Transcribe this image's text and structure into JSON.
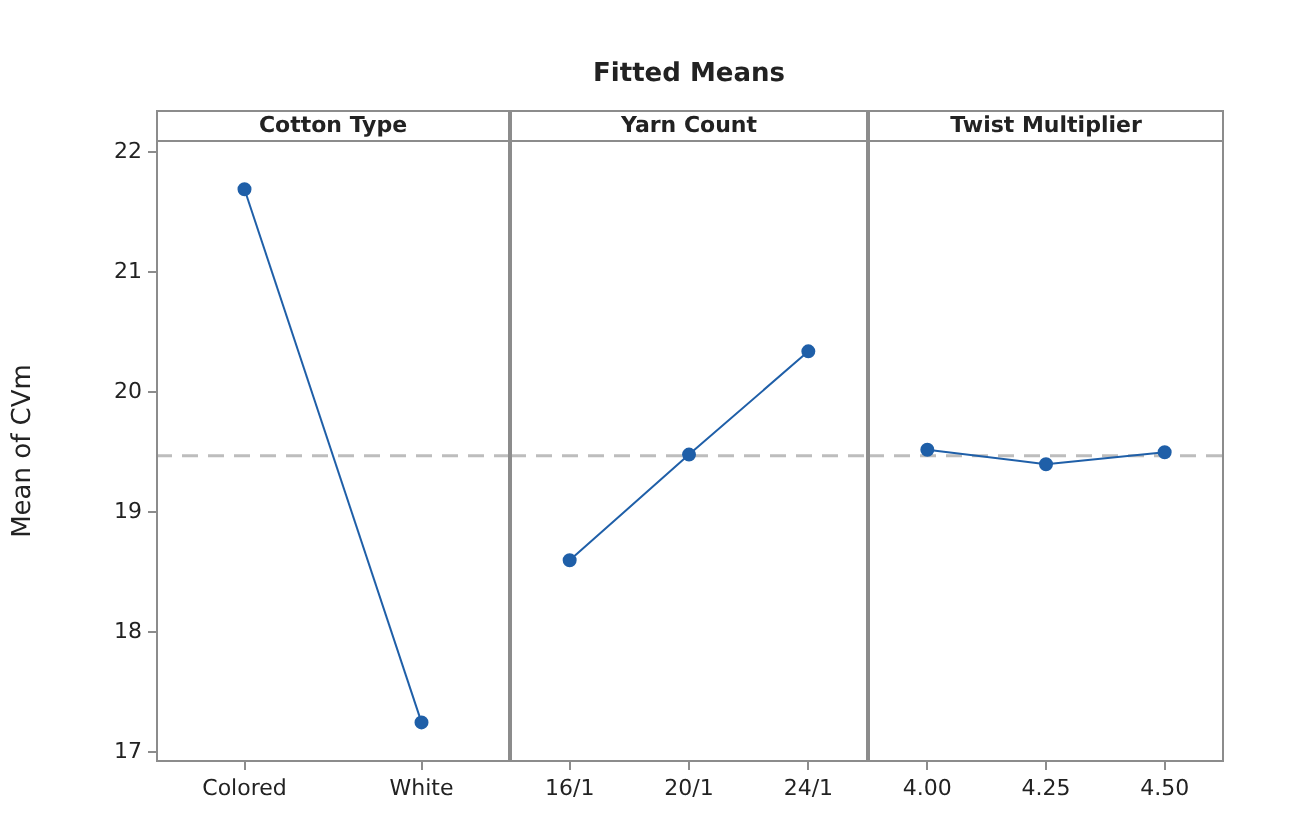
{
  "chart_data": [
    {
      "type": "line",
      "subtitle": "Cotton Type",
      "ylabel": "Mean of CVm",
      "categories": [
        "Colored",
        "White"
      ],
      "series": [
        {
          "color": "#1f5fa8",
          "values": [
            21.69,
            17.25
          ]
        }
      ],
      "ylim": [
        16.92,
        22.1
      ],
      "yticks": [
        17,
        18,
        19,
        20,
        21,
        22
      ],
      "marker": "circle",
      "line_style": "solid",
      "grid": false,
      "legend": false,
      "ref_lines": [
        {
          "axis": "y",
          "value": 19.47,
          "color": "#bdbdbd",
          "line_style": "dashed"
        }
      ]
    },
    {
      "type": "line",
      "title": "Fitted Means",
      "subtitle": "Yarn Count",
      "categories": [
        "16/1",
        "20/1",
        "24/1"
      ],
      "series": [
        {
          "color": "#1f5fa8",
          "values": [
            18.6,
            19.48,
            20.34
          ]
        }
      ],
      "ylim": [
        16.92,
        22.1
      ],
      "yticks": [
        17,
        18,
        19,
        20,
        21,
        22
      ],
      "tick_labels": "x",
      "marker": "circle",
      "line_style": "solid",
      "grid": false,
      "legend": false,
      "ref_lines": [
        {
          "axis": "y",
          "value": 19.47,
          "color": "#bdbdbd",
          "line_style": "dashed"
        }
      ]
    },
    {
      "type": "line",
      "subtitle": "Twist Multiplier",
      "categories": [
        "4.00",
        "4.25",
        "4.50"
      ],
      "series": [
        {
          "color": "#1f5fa8",
          "values": [
            19.52,
            19.4,
            19.5
          ]
        }
      ],
      "ylim": [
        16.92,
        22.1
      ],
      "yticks": [
        17,
        18,
        19,
        20,
        21,
        22
      ],
      "tick_labels": "x",
      "marker": "circle",
      "line_style": "solid",
      "grid": false,
      "legend": false,
      "ref_lines": [
        {
          "axis": "y",
          "value": 19.47,
          "color": "#bdbdbd",
          "line_style": "dashed"
        }
      ]
    }
  ]
}
